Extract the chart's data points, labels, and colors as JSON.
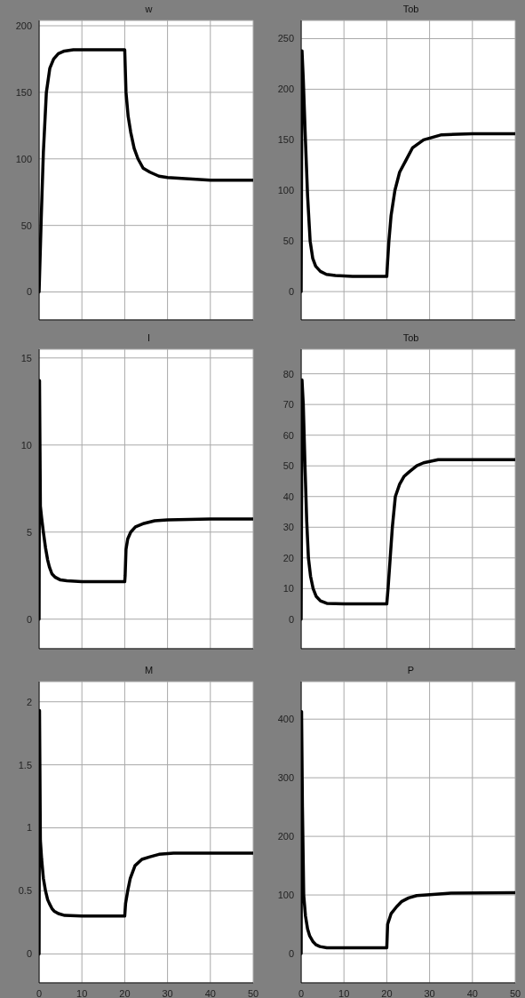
{
  "chart_data": [
    {
      "type": "line",
      "title": "w",
      "x": [
        0,
        0.5,
        1,
        1.7,
        2.5,
        3.4,
        4.5,
        5.9,
        8,
        12,
        20,
        20.3,
        20.8,
        21.4,
        22.2,
        23.1,
        24.3,
        25.9,
        28,
        30,
        35,
        40,
        50
      ],
      "values": [
        0,
        55,
        105,
        150,
        168,
        175,
        179,
        181,
        182,
        182,
        182,
        150,
        132,
        120,
        108,
        100,
        93,
        90,
        87,
        86,
        85,
        84,
        84
      ],
      "color": "#000000",
      "line_style": "solid",
      "xlim": [
        0,
        50
      ],
      "xticks": [
        0,
        10,
        20,
        30,
        40,
        50
      ],
      "ylim": [
        -21,
        204
      ],
      "yticks": [
        0,
        50,
        100,
        150,
        200
      ],
      "grid": true,
      "tick_labels": "y"
    },
    {
      "type": "line",
      "title": "Tob",
      "x": [
        0,
        0.2,
        0.5,
        1,
        1.5,
        2.1,
        2.7,
        3.4,
        4.5,
        5.9,
        8,
        12,
        20,
        20.2,
        20.5,
        21,
        21.9,
        23,
        24.5,
        26,
        28.6,
        32.8,
        40,
        50
      ],
      "values": [
        0,
        238,
        210,
        150,
        95,
        50,
        33,
        25,
        20,
        17,
        16,
        15,
        15,
        30,
        50,
        75,
        100,
        118,
        130,
        142,
        150,
        155,
        156,
        156
      ],
      "color": "#000000",
      "line_style": "solid",
      "xlim": [
        0,
        50
      ],
      "xticks": [
        0,
        10,
        20,
        30,
        40,
        50
      ],
      "ylim": [
        -28,
        268
      ],
      "yticks": [
        0,
        50,
        100,
        150,
        200,
        250
      ],
      "grid": true,
      "tick_labels": "y"
    },
    {
      "type": "line",
      "title": "I",
      "x": [
        0,
        0.1,
        0.3,
        0.6,
        1,
        1.5,
        2,
        2.4,
        3,
        3.8,
        5,
        6.5,
        10,
        20,
        20.1,
        20.3,
        20.7,
        21.4,
        22.5,
        24.5,
        27,
        30,
        40,
        50
      ],
      "values": [
        0,
        13.7,
        6.5,
        5.8,
        5,
        4.1,
        3.4,
        3,
        2.6,
        2.4,
        2.25,
        2.2,
        2.15,
        2.15,
        2.5,
        4,
        4.6,
        5,
        5.3,
        5.5,
        5.65,
        5.7,
        5.75,
        5.75
      ],
      "color": "#000000",
      "line_style": "solid",
      "xlim": [
        0,
        50
      ],
      "xticks": [
        0,
        10,
        20,
        30,
        40,
        50
      ],
      "ylim": [
        -1.7,
        15.5
      ],
      "yticks": [
        0,
        5,
        10,
        15
      ],
      "grid": true,
      "tick_labels": "y"
    },
    {
      "type": "line",
      "title": "Tob",
      "x": [
        0,
        0.2,
        0.5,
        0.9,
        1.3,
        1.7,
        2.2,
        2.8,
        3.5,
        4.5,
        6,
        10,
        20,
        20.3,
        20.8,
        21.3,
        22,
        23,
        24,
        25.2,
        27,
        28.6,
        32,
        40,
        50
      ],
      "values": [
        0,
        78,
        70,
        50,
        32,
        20,
        14,
        10,
        7.5,
        6,
        5.2,
        5,
        5,
        10,
        20,
        30,
        40,
        44,
        46.5,
        48,
        50,
        51,
        52,
        52,
        52
      ],
      "color": "#000000",
      "line_style": "solid",
      "xlim": [
        0,
        50
      ],
      "xticks": [
        0,
        10,
        20,
        30,
        40,
        50
      ],
      "ylim": [
        -9.6,
        88
      ],
      "yticks": [
        0,
        10,
        20,
        30,
        40,
        50,
        60,
        70,
        80
      ],
      "grid": true,
      "tick_labels": "y"
    },
    {
      "type": "line",
      "title": "M",
      "x": [
        0,
        0.1,
        0.3,
        0.6,
        1,
        1.5,
        2,
        2.4,
        3,
        3.5,
        4.5,
        6,
        10,
        20,
        20.2,
        20.7,
        21.3,
        22.4,
        24,
        25.9,
        28,
        31.4,
        40,
        50
      ],
      "values": [
        0,
        1.93,
        0.9,
        0.75,
        0.6,
        0.5,
        0.43,
        0.4,
        0.36,
        0.34,
        0.32,
        0.305,
        0.3,
        0.3,
        0.4,
        0.5,
        0.6,
        0.7,
        0.75,
        0.77,
        0.79,
        0.8,
        0.8,
        0.8
      ],
      "color": "#000000",
      "line_style": "solid",
      "xlim": [
        0,
        50
      ],
      "xticks": [
        0,
        10,
        20,
        30,
        40,
        50
      ],
      "ylim": [
        -0.23,
        2.16
      ],
      "yticks": [
        0,
        0.5,
        1,
        1.5,
        2
      ],
      "grid": true
    },
    {
      "type": "line",
      "title": "P",
      "x": [
        0,
        0.1,
        0.3,
        0.6,
        1,
        1.5,
        2,
        2.8,
        3.5,
        4.4,
        6,
        10,
        20,
        20.1,
        20.2,
        21,
        22.3,
        23.5,
        25.1,
        27,
        29.3,
        35,
        50
      ],
      "values": [
        0,
        413,
        250,
        100,
        65,
        42,
        30,
        20,
        15,
        12,
        10,
        10,
        10,
        30,
        50,
        68,
        80,
        89,
        95,
        99,
        100,
        103,
        104
      ],
      "color": "#000000",
      "line_style": "solid",
      "xlim": [
        0,
        50
      ],
      "xticks": [
        0,
        10,
        20,
        30,
        40,
        50
      ],
      "ylim": [
        -50,
        464
      ],
      "yticks": [
        0,
        100,
        200,
        300,
        400
      ],
      "grid": true
    }
  ]
}
